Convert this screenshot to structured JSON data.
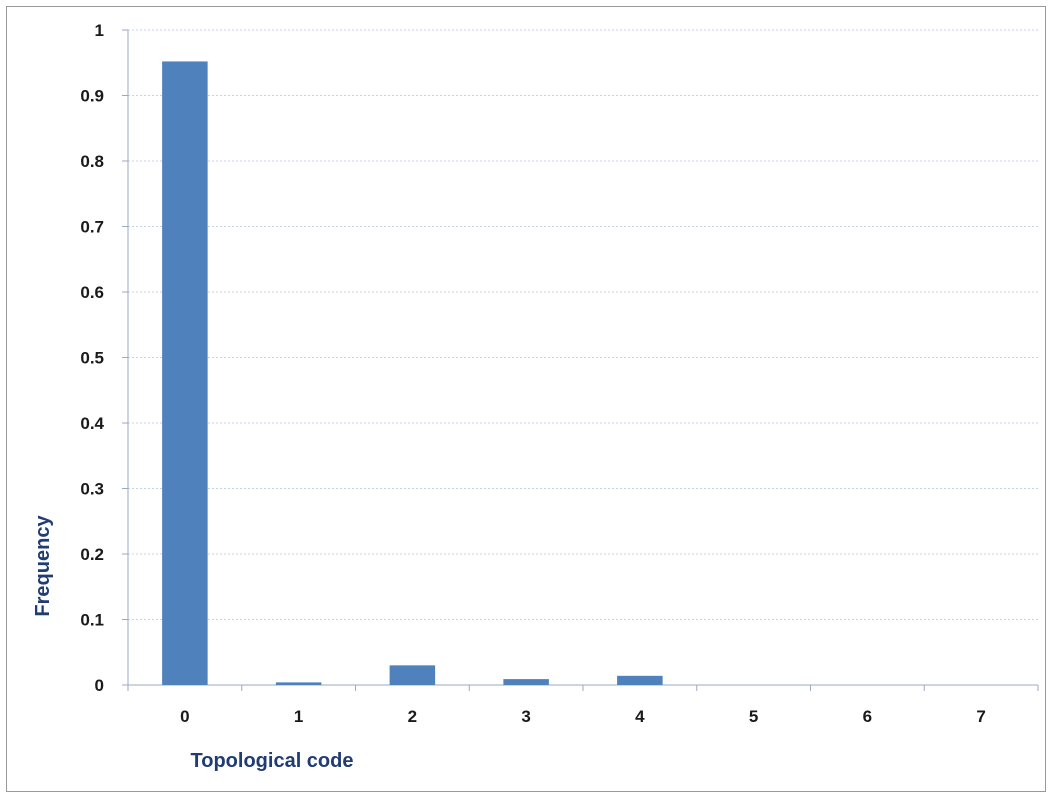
{
  "chart_data": {
    "type": "bar",
    "categories": [
      "0",
      "1",
      "2",
      "3",
      "4",
      "5",
      "6",
      "7"
    ],
    "values": [
      0.952,
      0.004,
      0.03,
      0.009,
      0.014,
      0,
      0,
      0
    ],
    "title": "",
    "xlabel": "Topological code",
    "ylabel": "Frequency",
    "ylim": [
      0,
      1
    ],
    "yticks": [
      "0",
      "0.1",
      "0.2",
      "0.3",
      "0.4",
      "0.5",
      "0.6",
      "0.7",
      "0.8",
      "0.9",
      "1"
    ],
    "grid": true,
    "legend": "none",
    "bar_color": "#4f81bd",
    "grid_color": "#c5d3e8",
    "title_color": "#1f3c73"
  }
}
